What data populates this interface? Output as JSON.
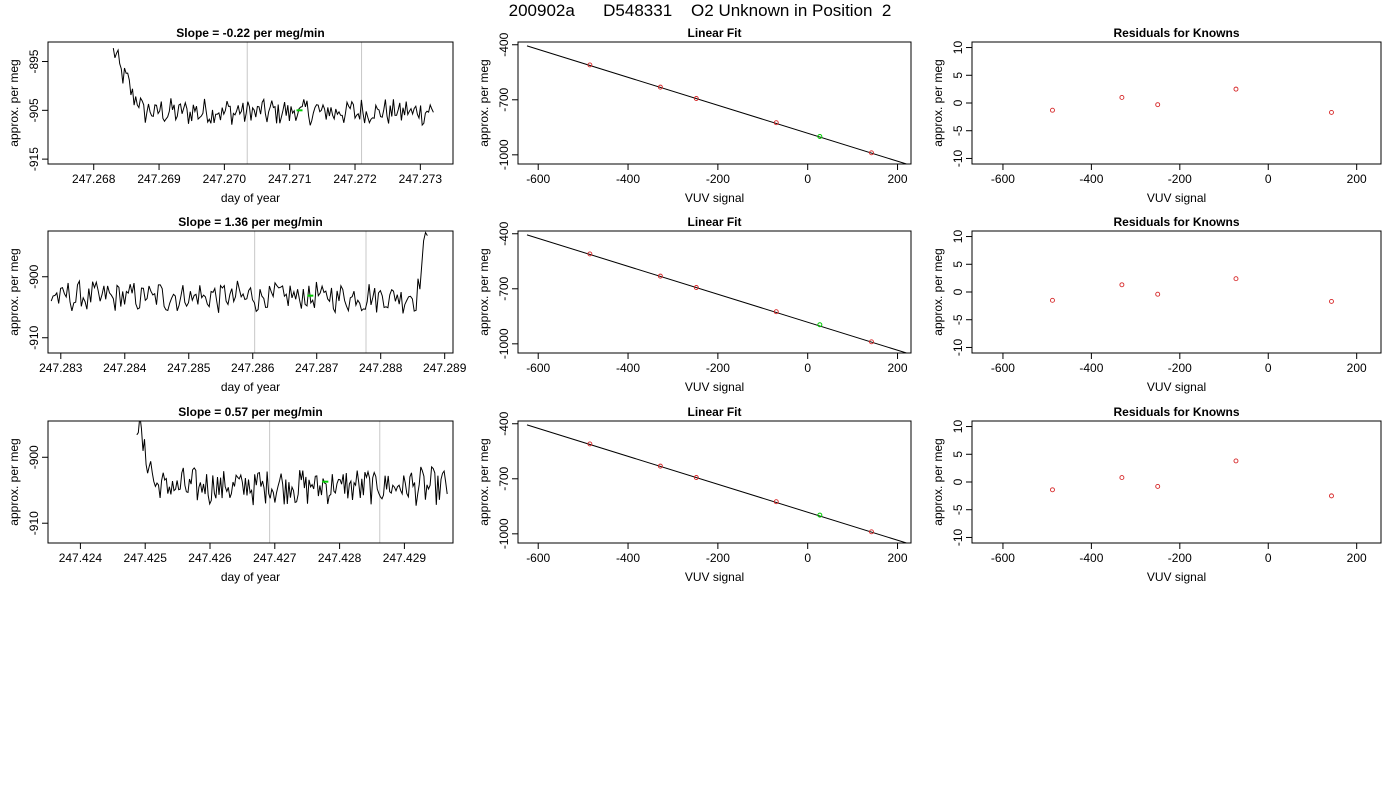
{
  "main_title": "200902a      D548331    O2 Unknown in Position  2",
  "colors": {
    "line": "#000000",
    "known_point": "#d62728",
    "unknown_point": "#00cc00",
    "reference_line": "#c8c8c8",
    "axes": "#000000"
  },
  "chart_data": [
    {
      "id": "r1-timeseries",
      "type": "line",
      "title": "Slope =  -0.22  per meg/min",
      "xlabel": "day of year",
      "ylabel": "approx. per meg",
      "xlim": [
        247.2673,
        247.2735
      ],
      "ylim": [
        -916,
        -891
      ],
      "xticks": [
        "247.268",
        "247.269",
        "247.270",
        "247.271",
        "247.272",
        "247.273"
      ],
      "yticks": [
        "-895",
        "-905",
        "-915"
      ],
      "vlines": [
        247.27035,
        247.2721
      ],
      "start": 247.2683,
      "end": 247.2732,
      "base": -905.3,
      "noise": 1.5,
      "spike": {
        "start_value": -893,
        "decay_end": 247.2688
      },
      "tail": null,
      "highlight": {
        "x": 247.27115,
        "y": -905
      }
    },
    {
      "id": "r1-linfit",
      "type": "scatter",
      "title": "Linear Fit",
      "xlabel": "VUV signal",
      "ylabel": "approx. per meg",
      "xlim": [
        -645,
        230
      ],
      "ylim": [
        -1050,
        -385
      ],
      "xticks": [
        "-600",
        "-400",
        "-200",
        "0",
        "200"
      ],
      "yticks": [
        "-400",
        "-700",
        "-1000"
      ],
      "fit_line": {
        "x": [
          -625,
          220
        ],
        "y": [
          -406,
          -1050
        ]
      },
      "known_points": [
        [
          -485,
          -510
        ],
        [
          -328,
          -631
        ],
        [
          -248,
          -693
        ],
        [
          -70,
          -825
        ],
        [
          142,
          -989
        ]
      ],
      "unknown_points": [
        [
          27,
          -900
        ]
      ]
    },
    {
      "id": "r1-residuals",
      "type": "scatter",
      "title": "Residuals for Knowns",
      "xlabel": "VUV signal",
      "ylabel": "approx. per meg",
      "xlim": [
        -670,
        255
      ],
      "ylim": [
        -11,
        11
      ],
      "xticks": [
        "-600",
        "-400",
        "-200",
        "0",
        "200"
      ],
      "yticks": [
        "10",
        "5",
        "0",
        "-5",
        "-10"
      ],
      "known_points": [
        [
          -488,
          -1.3
        ],
        [
          -331,
          1.0
        ],
        [
          -250,
          -0.3
        ],
        [
          -73,
          2.5
        ],
        [
          143,
          -1.7
        ]
      ],
      "unknown_points": []
    },
    {
      "id": "r2-timeseries",
      "type": "line",
      "title": "Slope =  1.36  per meg/min",
      "xlabel": "day of year",
      "ylabel": "approx. per meg",
      "xlim": [
        247.2828,
        247.28913
      ],
      "ylim": [
        -912.5,
        -892.5
      ],
      "xticks": [
        "247.283",
        "247.284",
        "247.285",
        "247.286",
        "247.287",
        "247.288",
        "247.289"
      ],
      "yticks": [
        "-900",
        "-910"
      ],
      "vlines": [
        247.28603,
        247.28777
      ],
      "start": 247.28285,
      "end": 247.28873,
      "base": -903.3,
      "noise": 1.4,
      "spike": null,
      "tail": {
        "from": 247.28853,
        "to_value": -892.5
      },
      "highlight": {
        "x": 247.2869,
        "y": -903.1
      }
    },
    {
      "id": "r2-linfit",
      "type": "scatter",
      "title": "Linear Fit",
      "xlabel": "VUV signal",
      "ylabel": "approx. per meg",
      "xlim": [
        -645,
        230
      ],
      "ylim": [
        -1050,
        -385
      ],
      "xticks": [
        "-600",
        "-400",
        "-200",
        "0",
        "200"
      ],
      "yticks": [
        "-400",
        "-700",
        "-1000"
      ],
      "fit_line": {
        "x": [
          -625,
          220
        ],
        "y": [
          -406,
          -1050
        ]
      },
      "known_points": [
        [
          -485,
          -510
        ],
        [
          -328,
          -631
        ],
        [
          -248,
          -693
        ],
        [
          -70,
          -825
        ],
        [
          142,
          -989
        ]
      ],
      "unknown_points": [
        [
          27,
          -896
        ]
      ]
    },
    {
      "id": "r2-residuals",
      "type": "scatter",
      "title": "Residuals for Knowns",
      "xlabel": "VUV signal",
      "ylabel": "approx. per meg",
      "xlim": [
        -670,
        255
      ],
      "ylim": [
        -11,
        11
      ],
      "xticks": [
        "-600",
        "-400",
        "-200",
        "0",
        "200"
      ],
      "yticks": [
        "10",
        "5",
        "0",
        "-5",
        "-10"
      ],
      "known_points": [
        [
          -488,
          -1.5
        ],
        [
          -331,
          1.3
        ],
        [
          -250,
          -0.4
        ],
        [
          -73,
          2.4
        ],
        [
          143,
          -1.7
        ]
      ],
      "unknown_points": []
    },
    {
      "id": "r3-timeseries",
      "type": "line",
      "title": "Slope =  0.57  per meg/min",
      "xlabel": "day of year",
      "ylabel": "approx. per meg",
      "xlim": [
        247.4235,
        247.42975
      ],
      "ylim": [
        -913,
        -894.5
      ],
      "xticks": [
        "247.424",
        "247.425",
        "247.426",
        "247.427",
        "247.428",
        "247.429"
      ],
      "yticks": [
        "-900",
        "-910"
      ],
      "vlines": [
        247.42692,
        247.42862
      ],
      "start": 247.42487,
      "end": 247.42966,
      "base": -904.4,
      "noise": 1.5,
      "spike": {
        "start_value": -894.5,
        "decay_end": 247.4252
      },
      "tail": null,
      "highlight": {
        "x": 247.42778,
        "y": -903.7
      }
    },
    {
      "id": "r3-linfit",
      "type": "scatter",
      "title": "Linear Fit",
      "xlabel": "VUV signal",
      "ylabel": "approx. per meg",
      "xlim": [
        -645,
        230
      ],
      "ylim": [
        -1050,
        -385
      ],
      "xticks": [
        "-600",
        "-400",
        "-200",
        "0",
        "200"
      ],
      "yticks": [
        "-400",
        "-700",
        "-1000"
      ],
      "fit_line": {
        "x": [
          -625,
          220
        ],
        "y": [
          -406,
          -1050
        ]
      },
      "known_points": [
        [
          -485,
          -510
        ],
        [
          -328,
          -631
        ],
        [
          -248,
          -693
        ],
        [
          -70,
          -825
        ],
        [
          142,
          -989
        ]
      ],
      "unknown_points": [
        [
          27,
          -898
        ]
      ]
    },
    {
      "id": "r3-residuals",
      "type": "scatter",
      "title": "Residuals for Knowns",
      "xlabel": "VUV signal",
      "ylabel": "approx. per meg",
      "xlim": [
        -670,
        255
      ],
      "ylim": [
        -11,
        11
      ],
      "xticks": [
        "-600",
        "-400",
        "-200",
        "0",
        "200"
      ],
      "yticks": [
        "10",
        "5",
        "0",
        "-5",
        "-10"
      ],
      "known_points": [
        [
          -488,
          -1.4
        ],
        [
          -331,
          0.8
        ],
        [
          -250,
          -0.8
        ],
        [
          -73,
          3.8
        ],
        [
          143,
          -2.5
        ]
      ],
      "unknown_points": []
    }
  ]
}
